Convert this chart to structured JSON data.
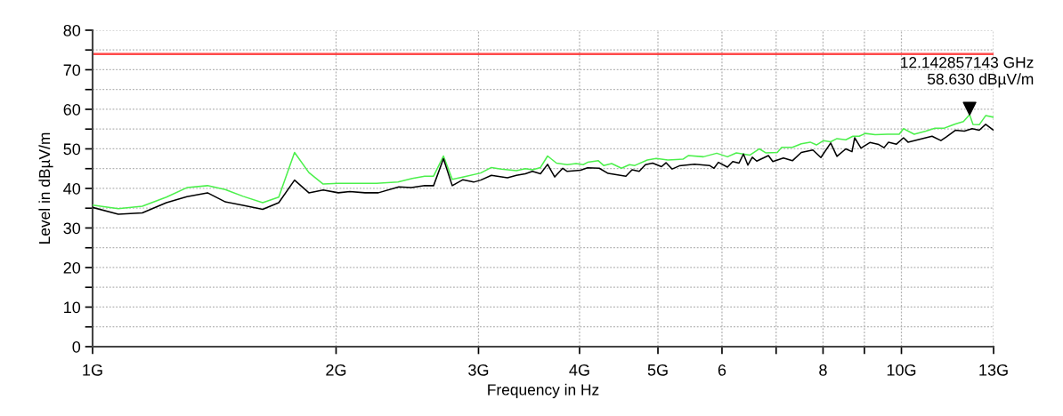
{
  "chart_data": {
    "type": "line",
    "xlabel": "Frequency in Hz",
    "ylabel": "Level in dBµV/m",
    "log": "x",
    "grid": true,
    "marker": "none",
    "line_style": "solid",
    "xlim": [
      1,
      13
    ],
    "ylim": [
      0,
      80
    ],
    "xticks": [
      {
        "value": 1,
        "label": "1G"
      },
      {
        "value": 2,
        "label": "2G"
      },
      {
        "value": 3,
        "label": "3G"
      },
      {
        "value": 4,
        "label": "4G"
      },
      {
        "value": 5,
        "label": "5G"
      },
      6,
      {
        "value": 7,
        "label": null
      },
      8,
      {
        "value": 9,
        "label": null
      },
      {
        "value": 10,
        "label": "10G"
      },
      {
        "value": 13,
        "label": "13G"
      }
    ],
    "yticks": [
      0,
      {
        "value": 5,
        "label": null
      },
      10,
      {
        "value": 15,
        "label": null
      },
      20,
      {
        "value": 25,
        "label": null
      },
      30,
      {
        "value": 35,
        "label": null
      },
      40,
      {
        "value": 45,
        "label": null
      },
      50,
      {
        "value": 55,
        "label": null
      },
      60,
      {
        "value": 65,
        "label": null
      },
      70,
      {
        "value": 75,
        "label": null
      },
      80
    ],
    "ref_lines": [
      {
        "axis": "y",
        "value": 74,
        "color": "#ff4b4b",
        "line_style": "solid"
      }
    ],
    "annotations": [
      {
        "text": "12.142857143 GHz\n58.630 dBµV/m",
        "x": 12.142857143,
        "y": 58.63
      }
    ],
    "series": [
      {
        "color": "#4cf04c",
        "x": [
          1.0,
          1.076,
          1.152,
          1.234,
          1.308,
          1.387,
          1.459,
          1.535,
          1.623,
          1.699,
          1.777,
          1.851,
          1.928,
          2.013,
          2.244,
          2.385,
          2.485,
          2.574,
          2.64,
          2.715,
          2.784,
          2.884,
          3.019,
          3.112,
          3.2,
          3.342,
          3.428,
          3.498,
          3.579,
          3.652,
          3.746,
          3.862,
          3.961,
          4.042,
          4.093,
          4.22,
          4.284,
          4.383,
          4.507,
          4.611,
          4.682,
          4.851,
          4.976,
          5.143,
          5.369,
          5.451,
          5.691,
          5.911,
          6.094,
          6.25,
          6.492,
          6.675,
          6.795,
          7.023,
          7.112,
          7.332,
          7.52,
          7.713,
          7.851,
          8.012,
          8.176,
          8.323,
          8.536,
          8.71,
          8.866,
          9.025,
          9.28,
          9.614,
          9.936,
          10.06,
          10.37,
          10.72,
          11.0,
          11.28,
          11.48,
          11.66,
          11.93,
          12.142857143,
          12.26,
          12.48,
          12.71,
          13.0
        ],
        "values": [
          35.8,
          34.9,
          35.5,
          37.8,
          40.2,
          40.7,
          39.7,
          38.0,
          36.4,
          37.8,
          49.1,
          44.0,
          41.1,
          41.3,
          41.3,
          41.6,
          42.5,
          43.1,
          43.1,
          48.2,
          42.3,
          43.0,
          43.9,
          45.3,
          44.9,
          44.5,
          45.0,
          44.7,
          45.3,
          48.2,
          46.4,
          46.0,
          46.3,
          46.0,
          46.6,
          47.0,
          45.8,
          46.3,
          45.1,
          46.0,
          45.8,
          47.2,
          47.6,
          47.2,
          47.4,
          48.3,
          48.0,
          48.9,
          48.0,
          49.0,
          48.4,
          50.0,
          49.0,
          49.1,
          50.4,
          50.4,
          51.3,
          51.7,
          51.0,
          52.1,
          51.8,
          52.6,
          52.3,
          53.2,
          53.2,
          53.9,
          53.6,
          53.7,
          53.7,
          55.1,
          53.7,
          54.5,
          55.2,
          55.2,
          55.8,
          56.3,
          56.9,
          58.63,
          56.2,
          56.1,
          58.4,
          58.0
        ]
      },
      {
        "color": "#000000",
        "x": [
          1.0,
          1.076,
          1.152,
          1.234,
          1.308,
          1.387,
          1.459,
          1.535,
          1.623,
          1.699,
          1.777,
          1.851,
          1.928,
          2.013,
          2.08,
          2.172,
          2.256,
          2.391,
          2.478,
          2.574,
          2.64,
          2.715,
          2.784,
          2.87,
          2.959,
          3.019,
          3.112,
          3.258,
          3.342,
          3.428,
          3.498,
          3.579,
          3.652,
          3.727,
          3.813,
          3.862,
          4.011,
          4.093,
          4.23,
          4.339,
          4.564,
          4.645,
          4.74,
          4.825,
          4.925,
          5.051,
          5.116,
          5.207,
          5.314,
          5.549,
          5.791,
          5.865,
          5.939,
          6.094,
          6.187,
          6.298,
          6.378,
          6.459,
          6.541,
          6.624,
          6.848,
          6.934,
          7.147,
          7.332,
          7.52,
          7.772,
          7.951,
          8.176,
          8.323,
          8.536,
          8.687,
          8.754,
          8.912,
          9.141,
          9.374,
          9.517,
          9.639,
          9.86,
          10.06,
          10.19,
          10.53,
          10.91,
          11.19,
          11.36,
          11.66,
          11.96,
          12.23,
          12.48,
          12.71,
          13.0
        ],
        "values": [
          35.2,
          33.5,
          33.8,
          36.4,
          37.9,
          38.9,
          36.6,
          35.7,
          34.7,
          36.4,
          42.1,
          38.9,
          39.6,
          38.9,
          39.2,
          38.9,
          38.9,
          40.4,
          40.2,
          40.7,
          40.7,
          47.5,
          40.7,
          42.2,
          41.6,
          42.1,
          43.3,
          42.7,
          43.3,
          43.7,
          44.3,
          43.7,
          46.1,
          42.9,
          45.1,
          44.3,
          44.6,
          45.2,
          45.1,
          43.8,
          43.1,
          44.7,
          44.3,
          46.0,
          46.4,
          45.5,
          46.5,
          44.9,
          45.7,
          46.1,
          45.8,
          45.1,
          46.6,
          45.4,
          46.8,
          46.4,
          48.7,
          45.9,
          47.9,
          46.9,
          48.3,
          46.8,
          47.7,
          47.0,
          49.1,
          49.7,
          47.8,
          51.5,
          48.1,
          50.0,
          49.3,
          52.8,
          50.2,
          51.6,
          51.1,
          50.3,
          51.7,
          51.2,
          52.8,
          51.7,
          52.4,
          53.2,
          52.1,
          53.0,
          54.7,
          54.5,
          55.1,
          54.7,
          56.2,
          54.7
        ]
      }
    ]
  }
}
